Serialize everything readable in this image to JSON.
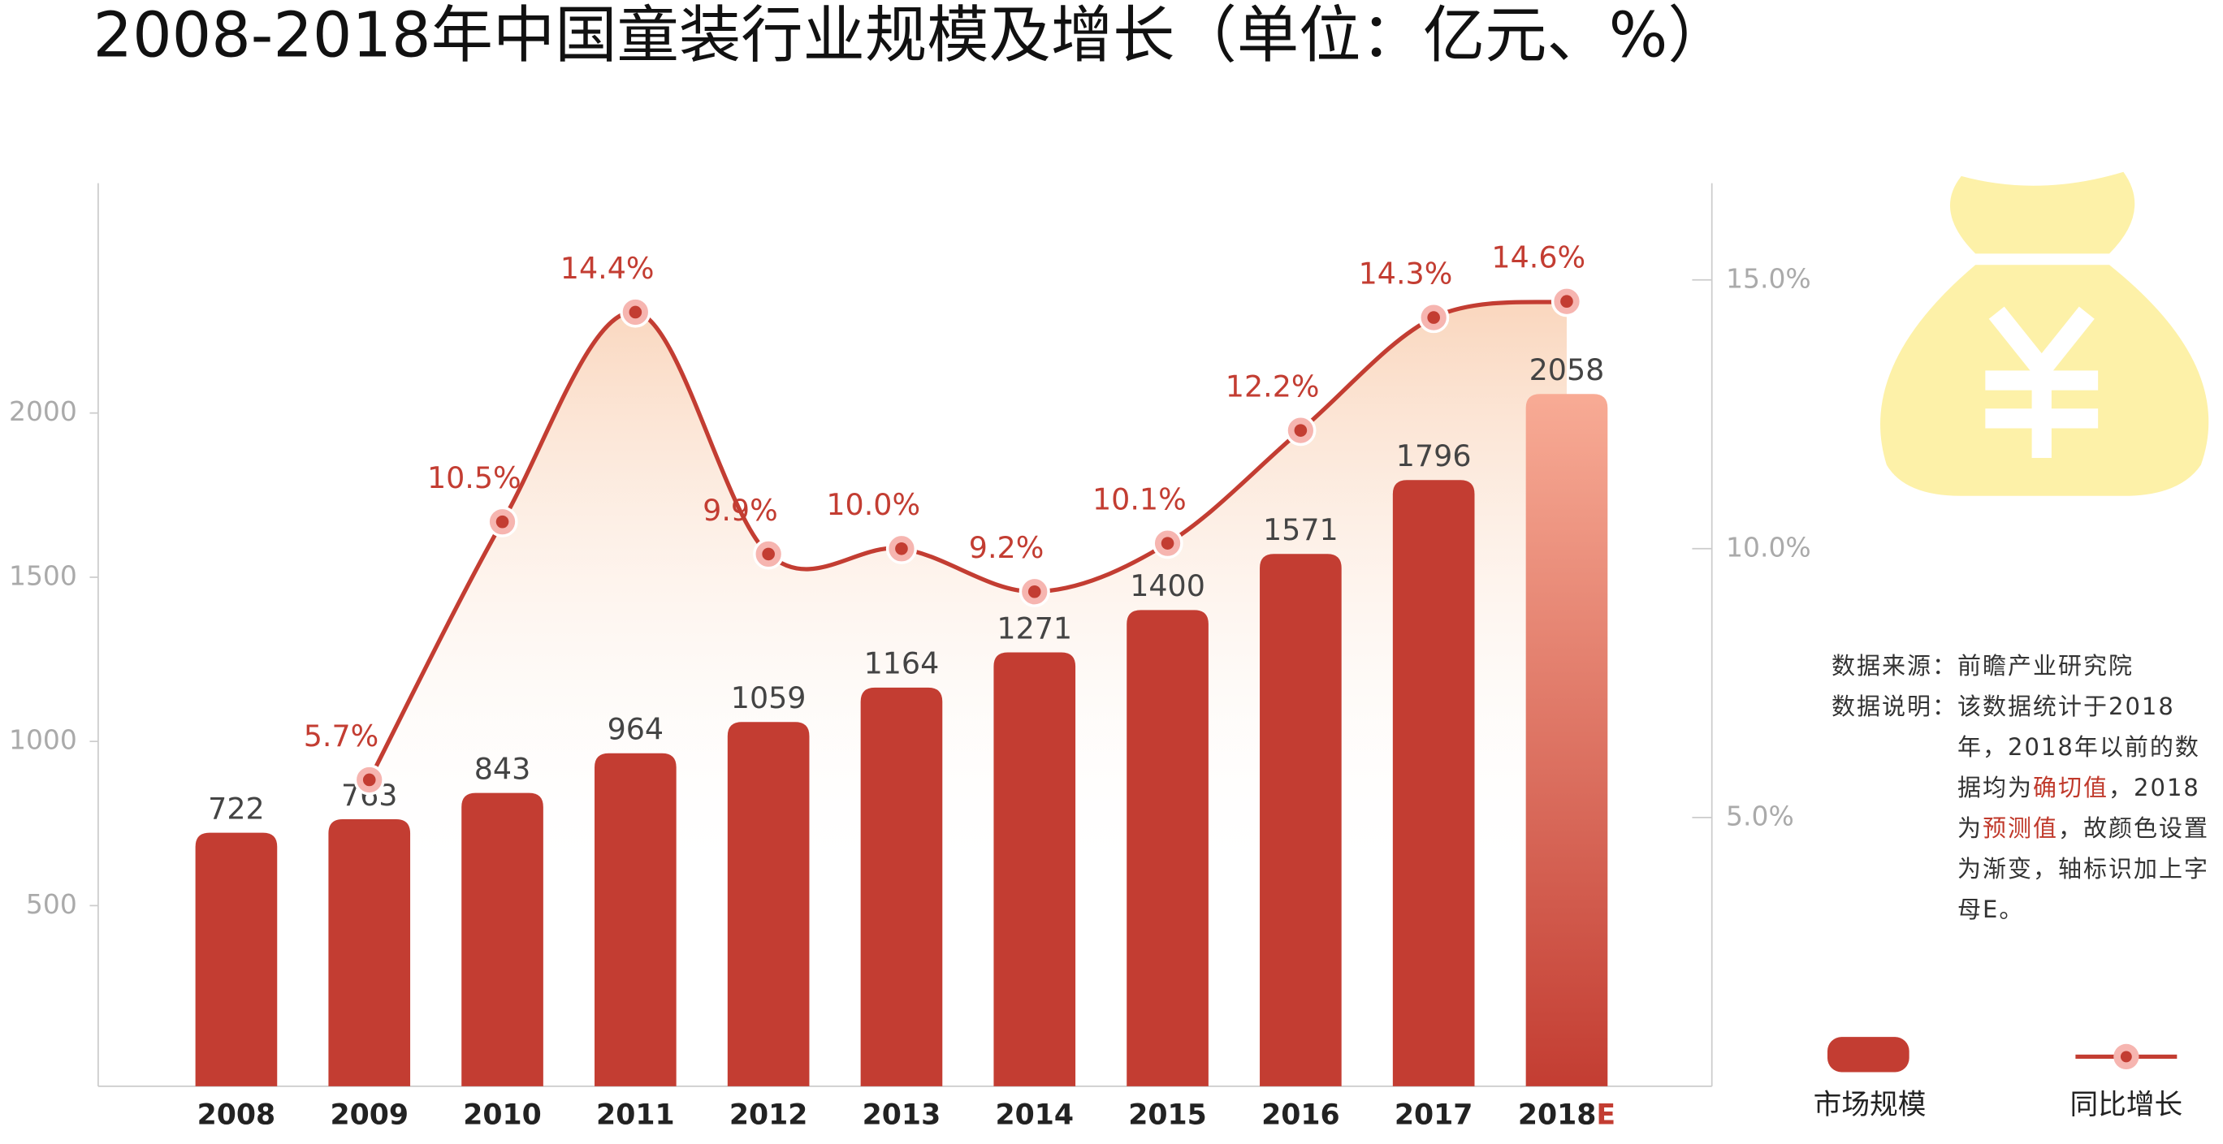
{
  "chart_data": {
    "type": "bar-line",
    "title": "2008-2018年中国童装行业规模及增长（单位：亿元、%）",
    "categories": [
      "2008",
      "2009",
      "2010",
      "2011",
      "2012",
      "2013",
      "2014",
      "2015",
      "2016",
      "2017",
      "2018E"
    ],
    "series": [
      {
        "name": "市场规模",
        "type": "bar",
        "color": "#c33d32",
        "values": [
          722,
          763,
          843,
          964,
          1059,
          1164,
          1271,
          1400,
          1571,
          1796,
          2058
        ]
      },
      {
        "name": "同比增长",
        "type": "line",
        "axis": "y2",
        "color": "#c33d32",
        "values": [
          null,
          5.7,
          10.5,
          14.4,
          9.9,
          10.0,
          9.2,
          10.1,
          12.2,
          14.3,
          14.6
        ],
        "value_labels": [
          null,
          "5.7%",
          "10.5%",
          "14.4%",
          "9.9%",
          "10.0%",
          "9.2%",
          "10.1%",
          "12.2%",
          "14.3%",
          "14.6%"
        ]
      }
    ],
    "ylim": [
      -50,
      2700
    ],
    "yticks": [
      500,
      1000,
      1500,
      2000
    ],
    "y2lim": [
      0,
      16.8
    ],
    "y2ticks": [
      {
        "value": 5,
        "label": "5.0%"
      },
      {
        "value": 10,
        "label": "10.0%"
      },
      {
        "value": 15,
        "label": "15.0%"
      }
    ]
  },
  "notes": {
    "source_label": "数据来源：",
    "source": "前瞻产业研究院",
    "desc_label": "数据说明：",
    "desc": [
      {
        "text": "该数据统计于2018年，2018年以前的数据均为"
      },
      {
        "text": "确切值",
        "highlight": true
      },
      {
        "text": "，2018为"
      },
      {
        "text": "预测值",
        "highlight": true
      },
      {
        "text": "，故颜色设置为渐变，轴标识加上字母E。"
      }
    ]
  }
}
